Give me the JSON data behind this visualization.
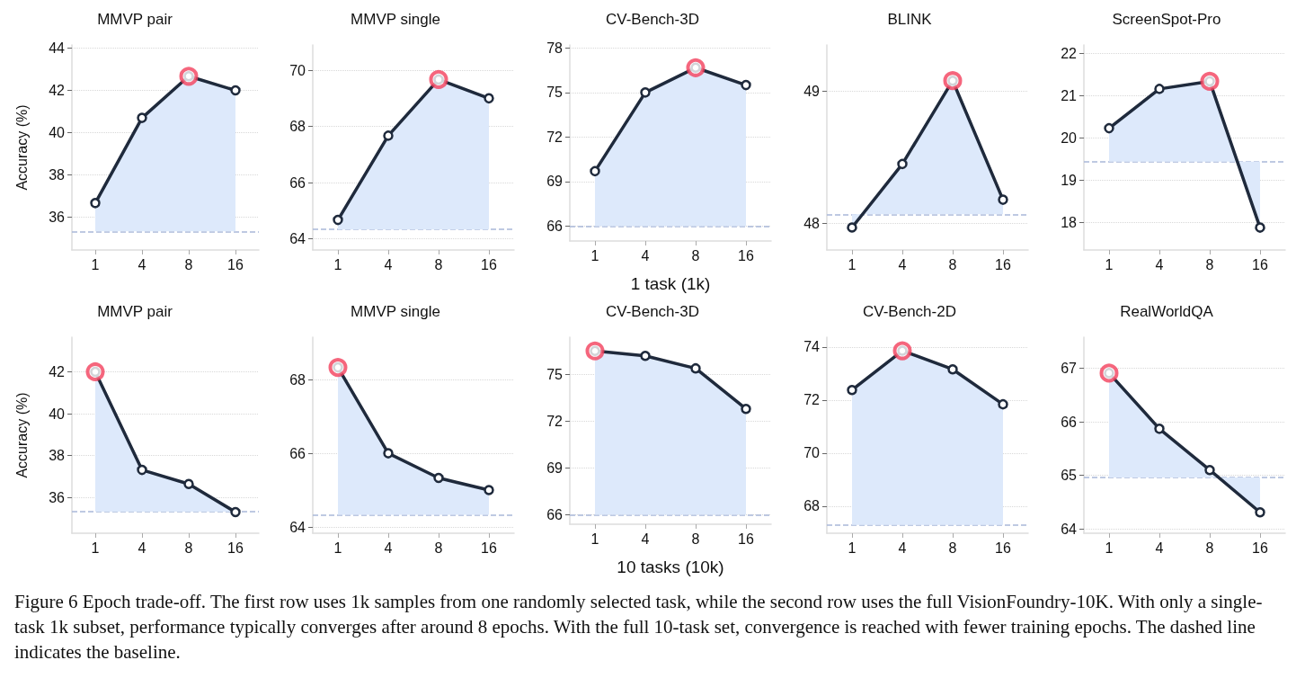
{
  "chart_data": [
    {
      "type": "area",
      "title": "MMVP pair",
      "ylabel": "Accuracy (%)",
      "categories": [
        "1",
        "4",
        "8",
        "16"
      ],
      "ylim": [
        34.45,
        44.15
      ],
      "yticks": [
        36,
        38,
        40,
        42,
        44
      ],
      "grid": "y",
      "marker": "circle",
      "series": [
        {
          "color": "#1f2a3c",
          "values": [
            36.67,
            40.7,
            42.67,
            42.0
          ]
        },
        {
          "type": "scatter",
          "color": "#f2405c",
          "values": [
            null,
            null,
            42.67,
            null
          ]
        }
      ],
      "ref_lines": [
        {
          "axis": "y",
          "value": 35.33,
          "color": "#a9b8d9",
          "line_style": "dashed"
        }
      ]
    },
    {
      "type": "area",
      "title": "MMVP single",
      "categories": [
        "1",
        "4",
        "8",
        "16"
      ],
      "ylim": [
        63.6,
        70.9
      ],
      "yticks": [
        64,
        66,
        68,
        70
      ],
      "grid": "y",
      "marker": "circle",
      "series": [
        {
          "color": "#1f2a3c",
          "values": [
            64.67,
            67.67,
            69.67,
            69.0
          ]
        },
        {
          "type": "scatter",
          "color": "#f2405c",
          "values": [
            null,
            null,
            69.67,
            null
          ]
        }
      ],
      "ref_lines": [
        {
          "axis": "y",
          "value": 64.33,
          "color": "#a9b8d9",
          "line_style": "dashed"
        }
      ]
    },
    {
      "type": "area",
      "title": "CV-Bench-3D",
      "xlabel": "1 task (1k)",
      "categories": [
        "1",
        "4",
        "8",
        "16"
      ],
      "ylim": [
        65.0,
        78.2
      ],
      "yticks": [
        66,
        69,
        72,
        75,
        78
      ],
      "grid": "y",
      "marker": "circle",
      "series": [
        {
          "color": "#1f2a3c",
          "values": [
            69.7,
            75.0,
            76.67,
            75.5
          ]
        },
        {
          "type": "scatter",
          "color": "#f2405c",
          "values": [
            null,
            null,
            76.67,
            null
          ]
        }
      ],
      "ref_lines": [
        {
          "axis": "y",
          "value": 66.0,
          "color": "#a9b8d9",
          "line_style": "dashed"
        }
      ]
    },
    {
      "type": "area",
      "title": "BLINK",
      "categories": [
        "1",
        "4",
        "8",
        "16"
      ],
      "ylim": [
        47.8,
        49.35
      ],
      "yticks": [
        48,
        49
      ],
      "grid": "y",
      "marker": "circle",
      "series": [
        {
          "color": "#1f2a3c",
          "values": [
            47.97,
            48.45,
            49.08,
            48.18
          ]
        },
        {
          "type": "scatter",
          "color": "#f2405c",
          "values": [
            null,
            null,
            49.08,
            null
          ]
        }
      ],
      "ref_lines": [
        {
          "axis": "y",
          "value": 48.07,
          "color": "#a9b8d9",
          "line_style": "dashed"
        }
      ]
    },
    {
      "type": "area",
      "title": "ScreenSpot-Pro",
      "categories": [
        "1",
        "4",
        "8",
        "16"
      ],
      "ylim": [
        17.35,
        22.2
      ],
      "yticks": [
        18,
        19,
        20,
        21,
        22
      ],
      "grid": "y",
      "marker": "circle",
      "series": [
        {
          "color": "#1f2a3c",
          "values": [
            20.23,
            21.16,
            21.34,
            17.88
          ]
        },
        {
          "type": "scatter",
          "color": "#f2405c",
          "values": [
            null,
            null,
            21.34,
            null
          ]
        }
      ],
      "ref_lines": [
        {
          "axis": "y",
          "value": 19.44,
          "color": "#a9b8d9",
          "line_style": "dashed"
        }
      ]
    },
    {
      "type": "area",
      "title": "MMVP pair",
      "ylabel": "Accuracy (%)",
      "categories": [
        "1",
        "4",
        "8",
        "16"
      ],
      "ylim": [
        34.3,
        43.65
      ],
      "yticks": [
        36,
        38,
        40,
        42
      ],
      "grid": "y",
      "marker": "circle",
      "series": [
        {
          "color": "#1f2a3c",
          "values": [
            42.0,
            37.32,
            36.65,
            35.31
          ]
        },
        {
          "type": "scatter",
          "color": "#f2405c",
          "values": [
            42.0,
            null,
            null,
            null
          ]
        }
      ],
      "ref_lines": [
        {
          "axis": "y",
          "value": 35.33,
          "color": "#a9b8d9",
          "line_style": "dashed"
        }
      ]
    },
    {
      "type": "area",
      "title": "MMVP single",
      "categories": [
        "1",
        "4",
        "8",
        "16"
      ],
      "ylim": [
        63.83,
        69.15
      ],
      "yticks": [
        64,
        66,
        68
      ],
      "grid": "y",
      "marker": "circle",
      "series": [
        {
          "color": "#1f2a3c",
          "values": [
            68.33,
            66.0,
            65.33,
            65.0
          ]
        },
        {
          "type": "scatter",
          "color": "#f2405c",
          "values": [
            68.33,
            null,
            null,
            null
          ]
        }
      ],
      "ref_lines": [
        {
          "axis": "y",
          "value": 64.33,
          "color": "#a9b8d9",
          "line_style": "dashed"
        }
      ]
    },
    {
      "type": "area",
      "title": "CV-Bench-3D",
      "xlabel": "10 tasks (10k)",
      "categories": [
        "1",
        "4",
        "8",
        "16"
      ],
      "ylim": [
        65.4,
        77.4
      ],
      "yticks": [
        66,
        69,
        72,
        75
      ],
      "grid": "y",
      "marker": "circle",
      "series": [
        {
          "color": "#1f2a3c",
          "values": [
            76.52,
            76.2,
            75.4,
            72.8
          ]
        },
        {
          "type": "scatter",
          "color": "#f2405c",
          "values": [
            76.52,
            null,
            null,
            null
          ]
        }
      ],
      "ref_lines": [
        {
          "axis": "y",
          "value": 66.0,
          "color": "#a9b8d9",
          "line_style": "dashed"
        }
      ]
    },
    {
      "type": "area",
      "title": "CV-Bench-2D",
      "categories": [
        "1",
        "4",
        "8",
        "16"
      ],
      "ylim": [
        66.98,
        74.37
      ],
      "yticks": [
        68,
        70,
        72,
        74
      ],
      "grid": "y",
      "marker": "circle",
      "series": [
        {
          "color": "#1f2a3c",
          "values": [
            72.38,
            73.86,
            73.16,
            71.84
          ]
        },
        {
          "type": "scatter",
          "color": "#f2405c",
          "values": [
            null,
            73.86,
            null,
            null
          ]
        }
      ],
      "ref_lines": [
        {
          "axis": "y",
          "value": 67.29,
          "color": "#a9b8d9",
          "line_style": "dashed"
        }
      ]
    },
    {
      "type": "area",
      "title": "RealWorldQA",
      "categories": [
        "1",
        "4",
        "8",
        "16"
      ],
      "ylim": [
        63.92,
        67.58
      ],
      "yticks": [
        64,
        65,
        66,
        67
      ],
      "grid": "y",
      "marker": "circle",
      "series": [
        {
          "color": "#1f2a3c",
          "values": [
            66.91,
            65.87,
            65.1,
            64.31
          ]
        },
        {
          "type": "scatter",
          "color": "#f2405c",
          "values": [
            66.91,
            null,
            null,
            null
          ]
        }
      ],
      "ref_lines": [
        {
          "axis": "y",
          "value": 64.96,
          "color": "#a9b8d9",
          "line_style": "dashed"
        }
      ],
      "annotations": [
        "Figure 6 Epoch trade-off. The first row uses 1k samples from one randomly selected task, while the second row uses the full VisionFoundry-10K. With only a single-task 1k subset, performance typically converges after around 8 epochs. With the full 10-task set, convergence is reached with fewer training epochs. The dashed line indicates the baseline."
      ]
    }
  ]
}
